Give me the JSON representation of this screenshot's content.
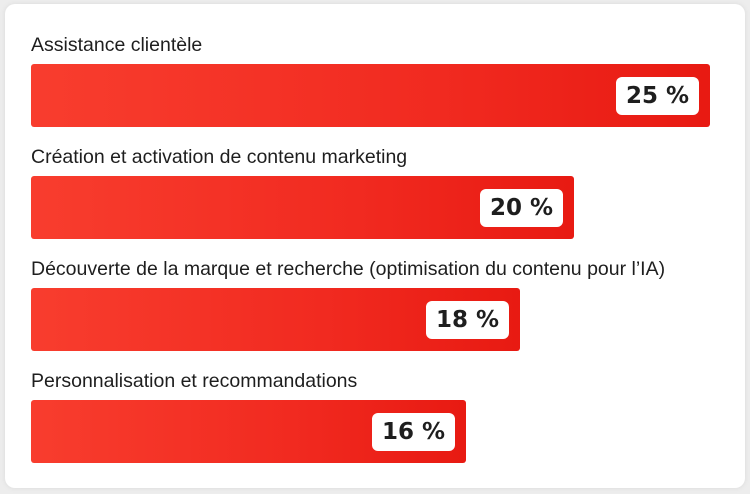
{
  "chart_data": {
    "type": "bar",
    "orientation": "horizontal",
    "categories": [
      "Assistance clientèle",
      "Création et activation de contenu marketing",
      "Découverte de la marque et recherche (optimisation du contenu pour l’IA)",
      "Personnalisation et recommandations"
    ],
    "values": [
      25,
      20,
      18,
      16
    ],
    "value_labels": [
      "25 %",
      "20 %",
      "18 %",
      "16 %"
    ],
    "xlim": [
      0,
      25
    ],
    "grid": false,
    "legend": "none",
    "bar_color": "#f12a20"
  }
}
